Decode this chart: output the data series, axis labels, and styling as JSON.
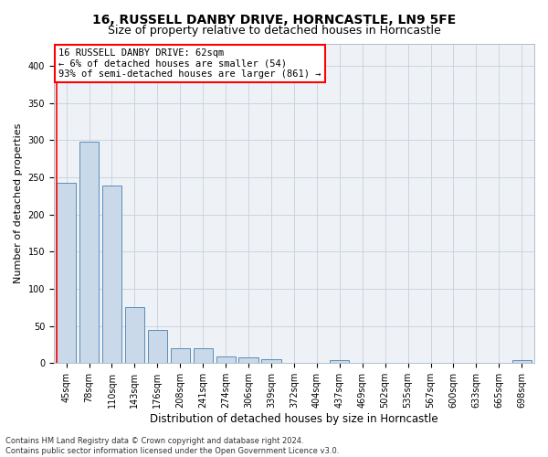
{
  "title": "16, RUSSELL DANBY DRIVE, HORNCASTLE, LN9 5FE",
  "subtitle": "Size of property relative to detached houses in Horncastle",
  "xlabel": "Distribution of detached houses by size in Horncastle",
  "ylabel": "Number of detached properties",
  "bar_labels": [
    "45sqm",
    "78sqm",
    "110sqm",
    "143sqm",
    "176sqm",
    "208sqm",
    "241sqm",
    "274sqm",
    "306sqm",
    "339sqm",
    "372sqm",
    "404sqm",
    "437sqm",
    "469sqm",
    "502sqm",
    "535sqm",
    "567sqm",
    "600sqm",
    "633sqm",
    "665sqm",
    "698sqm"
  ],
  "bar_values": [
    242,
    298,
    239,
    75,
    45,
    20,
    20,
    9,
    8,
    5,
    0,
    0,
    4,
    0,
    0,
    0,
    0,
    0,
    0,
    0,
    4
  ],
  "bar_color": "#c9d9ea",
  "bar_edge_color": "#5b8db8",
  "annotation_box_text": "16 RUSSELL DANBY DRIVE: 62sqm\n← 6% of detached houses are smaller (54)\n93% of semi-detached houses are larger (861) →",
  "ylim": [
    0,
    430
  ],
  "yticks": [
    0,
    50,
    100,
    150,
    200,
    250,
    300,
    350,
    400
  ],
  "background_color": "#eef2f7",
  "grid_color": "#c5d0dc",
  "footer_text": "Contains HM Land Registry data © Crown copyright and database right 2024.\nContains public sector information licensed under the Open Government Licence v3.0.",
  "title_fontsize": 10,
  "subtitle_fontsize": 9,
  "xlabel_fontsize": 8.5,
  "ylabel_fontsize": 8,
  "tick_fontsize": 7,
  "annotation_fontsize": 7.5,
  "footer_fontsize": 6
}
